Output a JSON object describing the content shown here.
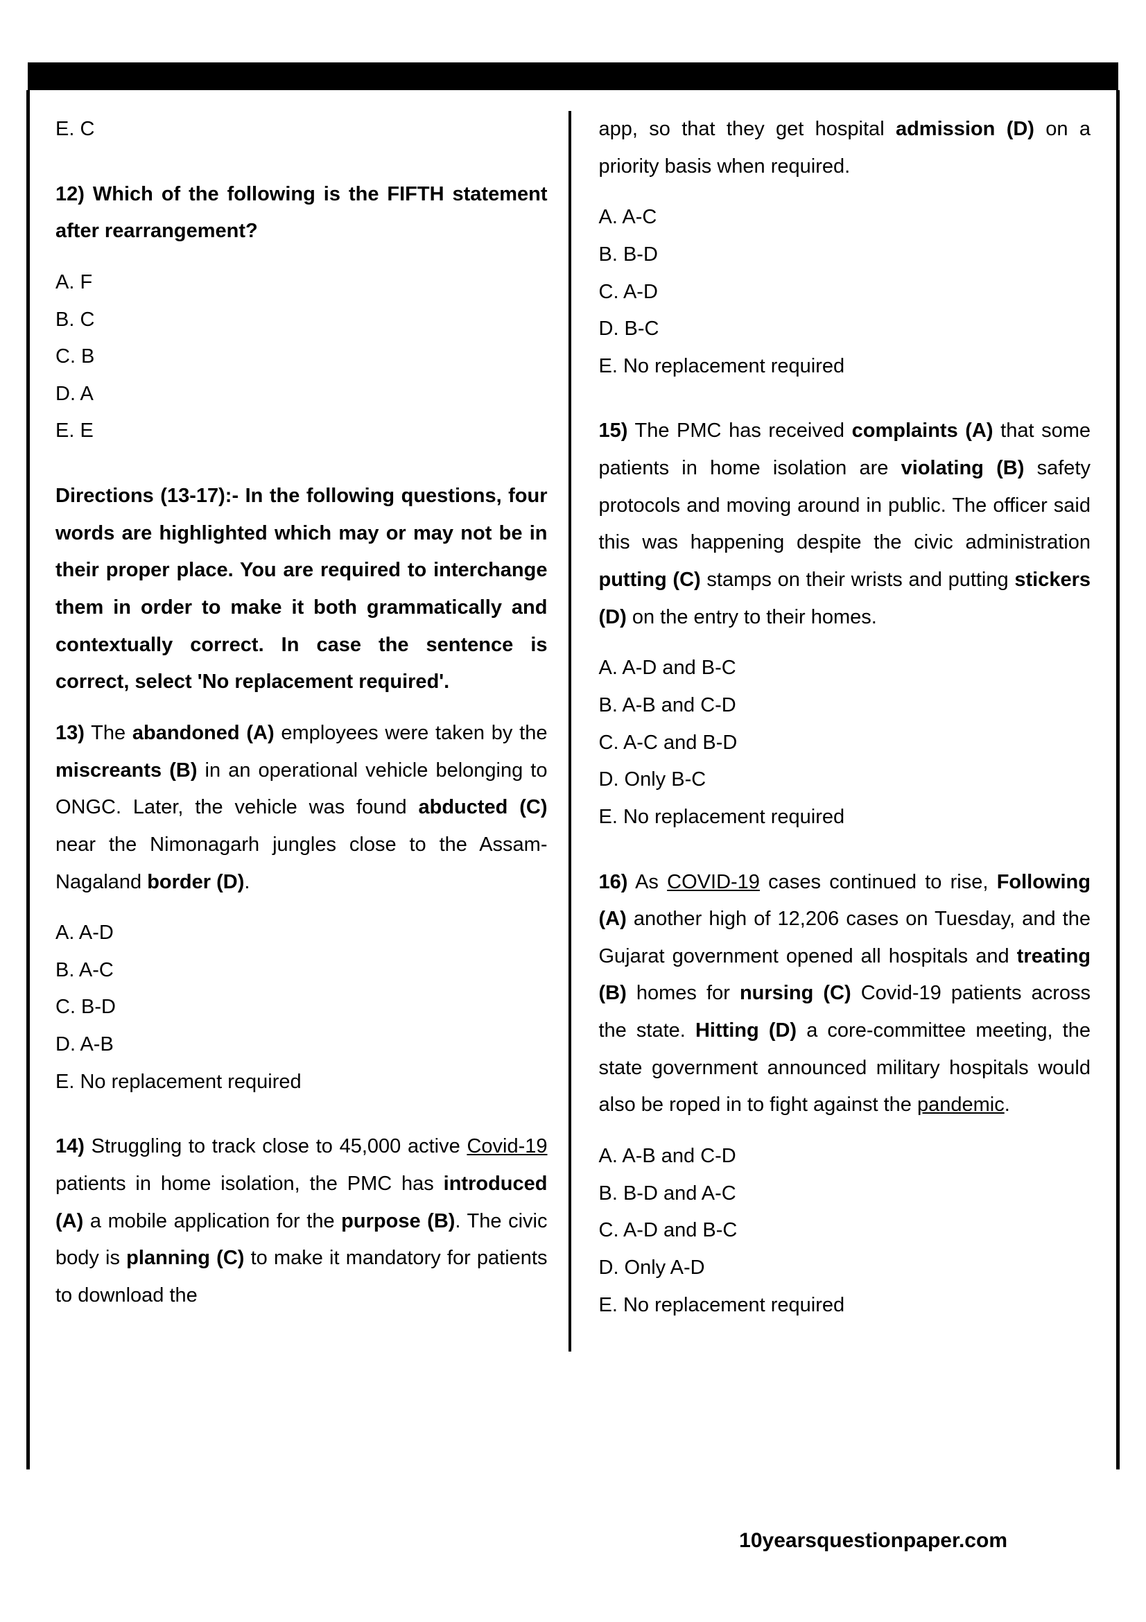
{
  "left": {
    "prev_option": "E. C",
    "q12": {
      "stem": "12) Which of the following is the FIFTH statement after rearrangement?",
      "options": [
        "A. F",
        "B. C",
        "C. B",
        "D. A",
        "E. E"
      ]
    },
    "directions": "Directions (13-17):- In the following questions, four words are highlighted which may or may not be in their proper place. You are required to interchange them in order to make it both grammatically and contextually correct. In case the sentence is correct, select 'No replacement required'.",
    "q13": {
      "num": "13)",
      "t1": " The ",
      "b1": "abandoned (A)",
      "t2": " employees were taken by the ",
      "b2": "miscreants (B)",
      "t3": " in an operational vehicle belonging to ONGC. Later, the vehicle was found ",
      "b3": "abducted (C)",
      "t4": " near the Nimonagarh jungles close to the Assam-Nagaland ",
      "b4": "border (D)",
      "t5": ".",
      "options": [
        "A. A-D",
        "B. A-C",
        "C. B-D",
        "D. A-B",
        "E. No replacement required"
      ]
    },
    "q14": {
      "num": "14)",
      "t1": " Struggling to track close to 45,000 active ",
      "u1": "Covid-19",
      "t2": " patients in home isolation, the PMC has ",
      "b1": "introduced (A)",
      "t3": " a mobile application for the ",
      "b2": "purpose (B)",
      "t4": ". The civic body is ",
      "b3": "planning (C)",
      "t5": " to make it mandatory for patients to download the "
    }
  },
  "right": {
    "q14_cont": {
      "t1": "app, so that they get hospital ",
      "b1": "admission (D)",
      "t2": " on a priority basis when required.",
      "options": [
        "A. A-C",
        "B. B-D",
        "C. A-D",
        "D. B-C",
        "E. No replacement required"
      ]
    },
    "q15": {
      "num": "15)",
      "t1": " The PMC has received ",
      "b1": "complaints (A)",
      "t2": " that some patients in home isolation are ",
      "b2": "violating (B)",
      "t3": " safety protocols and moving around in public. The officer said this was happening despite the civic administration ",
      "b3": "putting (C)",
      "t4": " stamps on their wrists and putting ",
      "b4": "stickers (D)",
      "t5": " on the entry to their homes.",
      "options": [
        "A. A-D and B-C",
        "B. A-B and C-D",
        "C. A-C and B-D",
        "D. Only B-C",
        "E. No replacement required"
      ]
    },
    "q16": {
      "num": "16)",
      "t1": " As ",
      "u1": "COVID-19",
      "t2": " cases continued to rise, ",
      "b1": "Following (A)",
      "t3": " another high of 12,206 cases on Tuesday, and the Gujarat government opened all hospitals and ",
      "b2": "treating (B)",
      "t4": " homes for ",
      "b3": "nursing (C)",
      "t5": " Covid-19 patients across the state. ",
      "b4": "Hitting (D)",
      "t6": " a core-committee meeting, the state government announced military hospitals would also be roped in to fight against the ",
      "u2": "pandemic",
      "t7": ".",
      "options": [
        "A. A-B and C-D",
        "B. B-D and A-C",
        "C. A-D and B-C",
        "D. Only A-D",
        "E. No replacement required"
      ]
    }
  },
  "footer": "10yearsquestionpaper.com"
}
